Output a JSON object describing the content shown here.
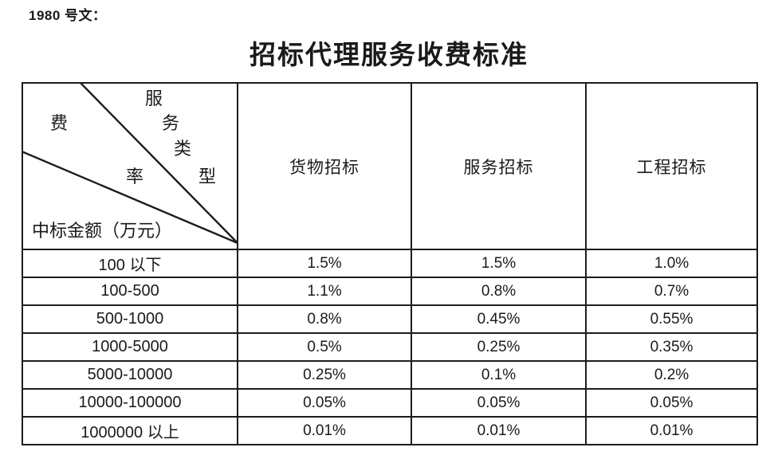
{
  "page": {
    "doc_label": "1980 号文：",
    "title": "招标代理服务收费标准"
  },
  "table": {
    "corner": {
      "upper_label": "服务类型",
      "upper_chars": [
        "服",
        "务",
        "类",
        "型"
      ],
      "middle_label": "费率",
      "middle_chars": [
        "费",
        "率"
      ],
      "bottom_label": "中标金额（万元）"
    },
    "columns": [
      "货物招标",
      "服务招标",
      "工程招标"
    ],
    "rows": [
      {
        "range": "100 以下",
        "values": [
          "1.5%",
          "1.5%",
          "1.0%"
        ]
      },
      {
        "range": "100-500",
        "values": [
          "1.1%",
          "0.8%",
          "0.7%"
        ]
      },
      {
        "range": "500-1000",
        "values": [
          "0.8%",
          "0.45%",
          "0.55%"
        ]
      },
      {
        "range": "1000-5000",
        "values": [
          "0.5%",
          "0.25%",
          "0.35%"
        ]
      },
      {
        "range": "5000-10000",
        "values": [
          "0.25%",
          "0.1%",
          "0.2%"
        ]
      },
      {
        "range": "10000-100000",
        "values": [
          "0.05%",
          "0.05%",
          "0.05%"
        ]
      },
      {
        "range": "1000000 以上",
        "values": [
          "0.01%",
          "0.01%",
          "0.01%"
        ]
      }
    ],
    "colors": {
      "border": "#1c1c1c",
      "text": "#1a1a1a",
      "background": "#ffffff"
    }
  }
}
